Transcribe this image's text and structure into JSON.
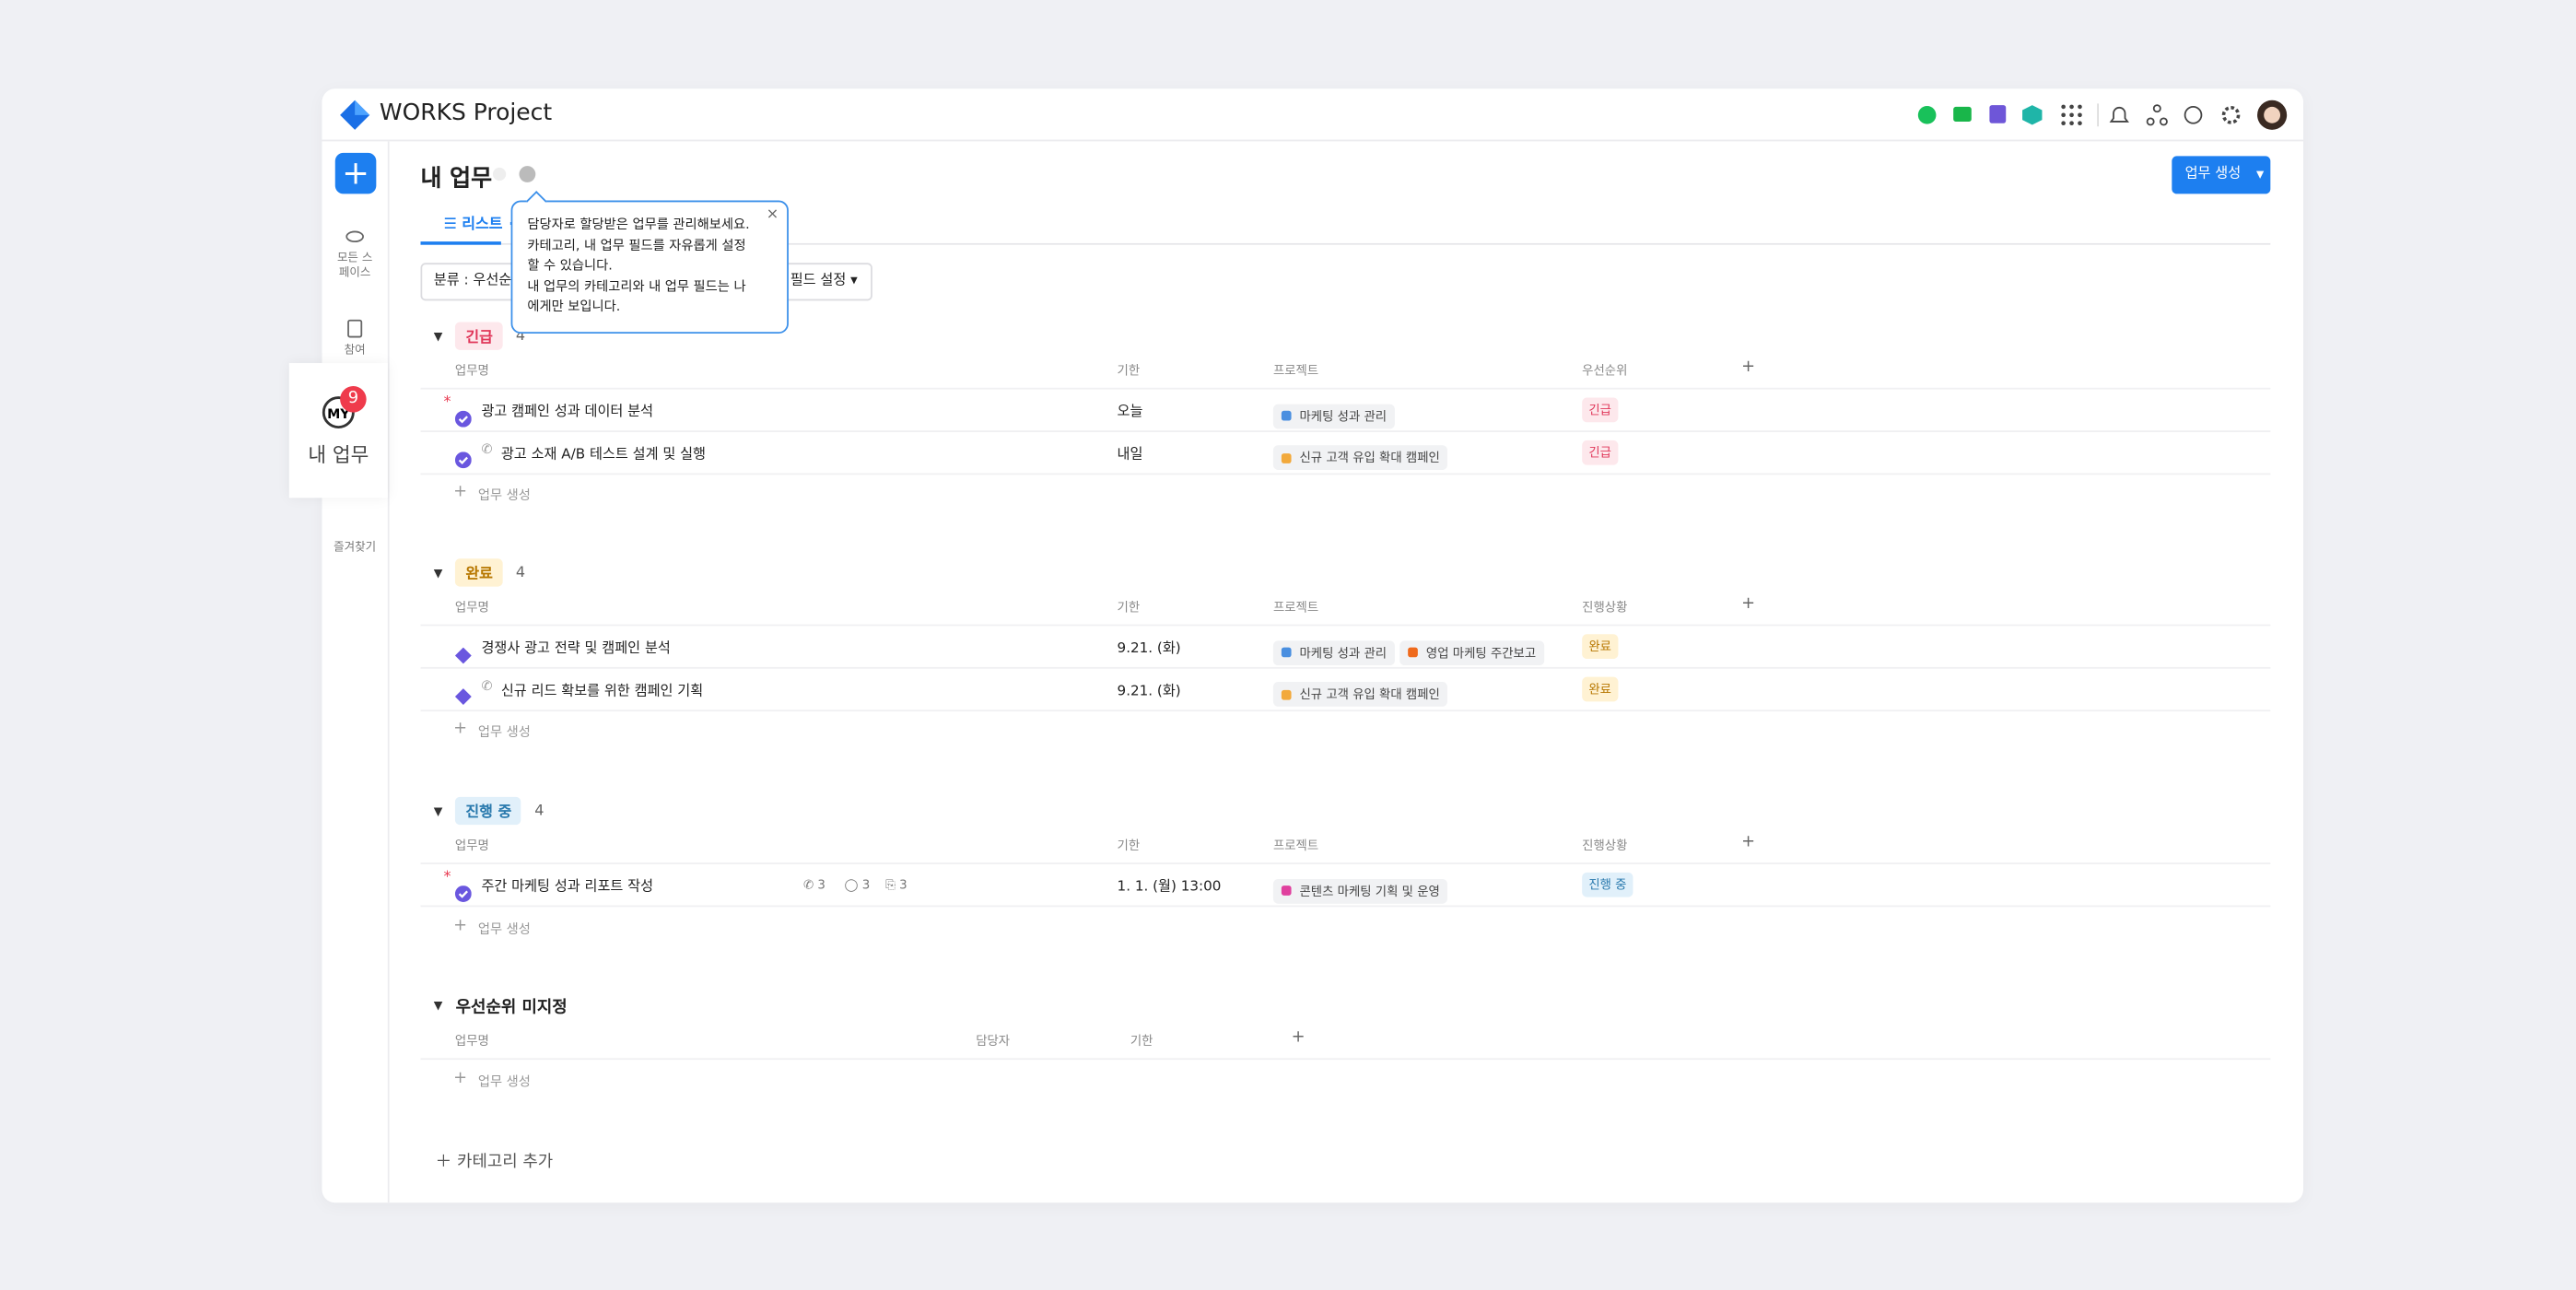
{
  "app": {
    "title": "WORKS Project"
  },
  "sidebar": {
    "items": [
      "모든 스페이스",
      "참여",
      "즐겨찾기"
    ],
    "popup": {
      "icon": "MY",
      "badge": 9,
      "label": "내 업무"
    }
  },
  "page": {
    "title": "내 업무",
    "create_button": "업무 생성",
    "tab": "리스트",
    "filter": "분류 : 우선순위",
    "field_setting": "필드 설정",
    "add_category": "카테고리 추가"
  },
  "tooltip": {
    "lines": [
      "담당자로 할당받은 업무를 관리해보세요.",
      "카테고리, 내 업무 필드를 자유롭게 설정",
      "할 수 있습니다.",
      "내 업무의 카테고리와 내 업무 필드는 나",
      "에게만 보입니다."
    ]
  },
  "groups": [
    {
      "label": "긴급",
      "count": 4,
      "columns": [
        "업무명",
        "기한",
        "프로젝트",
        "우선순위"
      ],
      "add": "업무 생성",
      "rows": [
        {
          "name": "광고 캠페인 성과 데이터 분석",
          "due": "오늘",
          "projects": [
            {
              "name": "마케팅 성과 관리",
              "color": "#4a8fe0"
            }
          ],
          "status": "긴급"
        },
        {
          "name": "광고 소재 A/B 테스트 설계 및 실행",
          "due": "내일",
          "projects": [
            {
              "name": "신규 고객 유입 확대 캠페인",
              "color": "#f2a93b"
            }
          ],
          "status": "긴급"
        }
      ]
    },
    {
      "label": "완료",
      "count": 4,
      "columns": [
        "업무명",
        "기한",
        "프로젝트",
        "진행상황"
      ],
      "add": "업무 생성",
      "rows": [
        {
          "name": "경쟁사 광고 전략 및 캠페인 분석",
          "due": "9.21. (화)",
          "projects": [
            {
              "name": "마케팅 성과 관리",
              "color": "#4a8fe0"
            },
            {
              "name": "영업 마케팅 주간보고",
              "color": "#ef6a1c"
            }
          ],
          "status": "완료"
        },
        {
          "name": "신규 리드 확보를 위한 캠페인 기획",
          "due": "9.21. (화)",
          "projects": [
            {
              "name": "신규 고객 유입 확대 캠페인",
              "color": "#f2a93b"
            }
          ],
          "status": "완료"
        }
      ]
    },
    {
      "label": "진행 중",
      "count": 4,
      "columns": [
        "업무명",
        "기한",
        "프로젝트",
        "진행상황"
      ],
      "add": "업무 생성",
      "rows": [
        {
          "name": "주간 마케팅 성과 리포트 작성",
          "counts": [
            3,
            3,
            3
          ],
          "due": "1. 1. (월) 13:00",
          "projects": [
            {
              "name": "콘텐츠 마케팅 기획 및 운영",
              "color": "#e0409e"
            }
          ],
          "status": "진행 중"
        }
      ]
    },
    {
      "label": "우선순위 미지정",
      "columns": [
        "업무명",
        "담당자",
        "기한"
      ],
      "add": "업무 생성",
      "rows": []
    }
  ]
}
